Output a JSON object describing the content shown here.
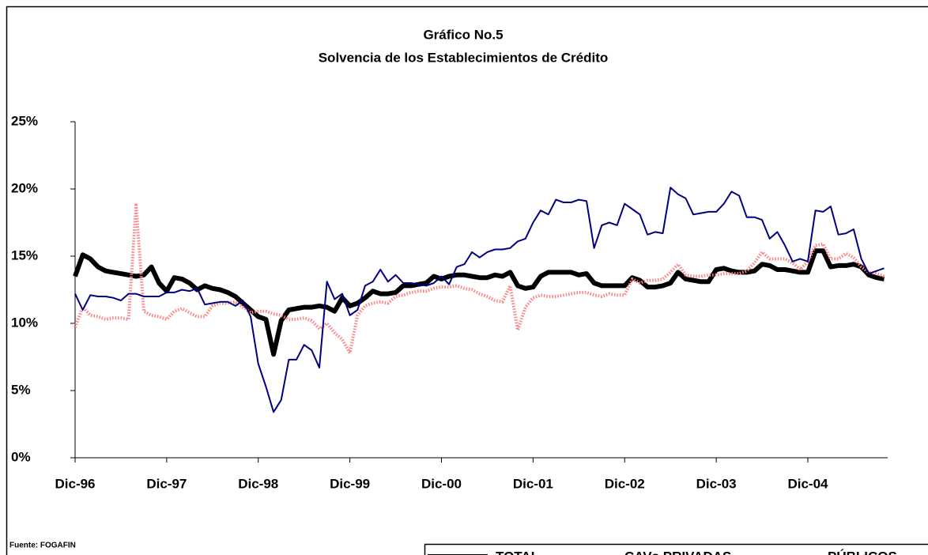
{
  "chart_data": {
    "type": "line",
    "title": "Gráfico No.5",
    "subtitle": "Solvencia de los Establecimientos de Crédito",
    "source": "Fuente: FOGAFIN",
    "categories": [
      "Dic-96",
      null,
      null,
      null,
      null,
      null,
      null,
      null,
      null,
      null,
      null,
      null,
      "Dic-97",
      null,
      null,
      null,
      null,
      null,
      null,
      null,
      null,
      null,
      null,
      null,
      "Dic-98",
      null,
      null,
      null,
      null,
      null,
      null,
      null,
      null,
      null,
      null,
      null,
      "Dic-99",
      null,
      null,
      null,
      null,
      null,
      null,
      null,
      null,
      null,
      null,
      null,
      "Dic-00",
      null,
      null,
      null,
      null,
      null,
      null,
      null,
      null,
      null,
      null,
      null,
      "Dic-01",
      null,
      null,
      null,
      null,
      null,
      null,
      null,
      null,
      null,
      null,
      null,
      "Dic-02",
      null,
      null,
      null,
      null,
      null,
      null,
      null,
      null,
      null,
      null,
      null,
      "Dic-03",
      null,
      null,
      null,
      null,
      null,
      null,
      null,
      null,
      null,
      null,
      null,
      "Dic-04",
      null,
      null,
      null,
      null,
      null,
      null,
      null,
      null,
      null,
      null
    ],
    "ylim": [
      0,
      25
    ],
    "yticks": [
      {
        "value": 0,
        "label": "0%"
      },
      {
        "value": 5,
        "label": "5%"
      },
      {
        "value": 10,
        "label": "10%"
      },
      {
        "value": 15,
        "label": "15%"
      },
      {
        "value": 20,
        "label": "20%"
      },
      {
        "value": 25,
        "label": "25%"
      }
    ],
    "grid": false,
    "legend": "bottom-right",
    "series": [
      {
        "name": "TOTAL",
        "color": "#000000",
        "values": [
          13.5,
          15.1,
          14.8,
          14.2,
          13.9,
          13.8,
          13.7,
          13.6,
          13.5,
          13.6,
          14.2,
          13.0,
          12.4,
          13.4,
          13.3,
          13.0,
          12.5,
          12.8,
          12.6,
          12.5,
          12.3,
          12.0,
          11.5,
          11.0,
          10.5,
          10.3,
          7.7,
          10.2,
          11.0,
          11.1,
          11.2,
          11.2,
          11.3,
          11.2,
          10.9,
          11.9,
          11.3,
          11.5,
          11.9,
          12.4,
          12.2,
          12.2,
          12.3,
          12.8,
          12.8,
          12.9,
          13.0,
          13.5,
          13.3,
          13.5,
          13.6,
          13.6,
          13.5,
          13.4,
          13.4,
          13.6,
          13.5,
          13.8,
          12.8,
          12.6,
          12.7,
          13.5,
          13.8,
          13.8,
          13.8,
          13.8,
          13.6,
          13.7,
          13.0,
          12.8,
          12.8,
          12.8,
          12.8,
          13.4,
          13.2,
          12.7,
          12.7,
          12.8,
          13.0,
          13.8,
          13.3,
          13.2,
          13.1,
          13.1,
          14.0,
          14.1,
          13.9,
          13.8,
          13.8,
          13.9,
          14.4,
          14.3,
          14.0,
          14.0,
          13.9,
          13.8,
          13.8,
          15.4,
          15.4,
          14.2,
          14.3,
          14.3,
          14.4,
          14.2,
          13.6,
          13.4,
          13.3
        ]
      },
      {
        "name": "CAVs PRIVADAS",
        "color": "#ff7f7f",
        "values": [
          9.7,
          11.2,
          10.6,
          10.5,
          10.3,
          10.4,
          10.4,
          10.3,
          18.8,
          10.9,
          10.6,
          10.5,
          10.3,
          10.9,
          11.1,
          10.8,
          10.5,
          10.5,
          11.3,
          11.5,
          11.5,
          11.6,
          11.2,
          10.8,
          10.9,
          10.9,
          10.7,
          10.6,
          10.3,
          10.3,
          10.4,
          10.2,
          9.6,
          10.0,
          9.3,
          8.8,
          7.8,
          10.6,
          11.3,
          11.5,
          11.6,
          11.5,
          12.0,
          12.1,
          12.3,
          12.4,
          12.4,
          12.6,
          12.7,
          12.7,
          12.8,
          12.6,
          12.5,
          12.2,
          12.0,
          11.7,
          11.6,
          12.8,
          9.5,
          11.2,
          11.9,
          12.1,
          12.0,
          12.0,
          12.1,
          12.2,
          12.3,
          12.3,
          12.1,
          12.0,
          12.2,
          12.1,
          12.1,
          13.3,
          13.0,
          13.2,
          13.2,
          13.3,
          13.8,
          14.4,
          13.6,
          13.5,
          13.5,
          13.6,
          13.6,
          13.7,
          13.7,
          13.7,
          13.9,
          14.5,
          15.3,
          14.8,
          14.8,
          14.8,
          14.5,
          14.0,
          14.6,
          15.8,
          15.9,
          14.8,
          14.8,
          15.2,
          14.9,
          14.2,
          13.8,
          13.7,
          13.5
        ]
      },
      {
        "name": "PÚBLICOS",
        "color": "#000080",
        "values": [
          12.2,
          11.0,
          12.1,
          12.0,
          12.0,
          11.9,
          11.7,
          12.2,
          12.2,
          12.0,
          12.0,
          12.0,
          12.3,
          12.3,
          12.5,
          12.4,
          12.6,
          11.4,
          11.5,
          11.6,
          11.6,
          11.3,
          11.7,
          10.5,
          7.0,
          5.3,
          3.4,
          4.3,
          7.3,
          7.3,
          8.4,
          8.0,
          6.7,
          13.1,
          11.8,
          12.2,
          10.6,
          11.0,
          12.8,
          13.1,
          14.0,
          13.1,
          13.6,
          13.0,
          13.0,
          12.9,
          12.8,
          13.0,
          13.5,
          12.9,
          14.2,
          14.4,
          15.3,
          14.9,
          15.3,
          15.5,
          15.5,
          15.6,
          16.1,
          16.3,
          17.5,
          18.4,
          18.1,
          19.2,
          19.0,
          19.0,
          19.2,
          19.1,
          15.6,
          17.3,
          17.5,
          17.3,
          18.9,
          18.5,
          18.1,
          16.6,
          16.8,
          16.7,
          20.1,
          19.6,
          19.3,
          18.1,
          18.2,
          18.3,
          18.3,
          18.9,
          19.8,
          19.5,
          17.9,
          17.9,
          17.7,
          16.3,
          16.8,
          15.8,
          14.6,
          14.8,
          14.6,
          18.4,
          18.3,
          18.7,
          16.6,
          16.7,
          17.0,
          14.8,
          13.7,
          13.9,
          14.1
        ]
      }
    ]
  }
}
